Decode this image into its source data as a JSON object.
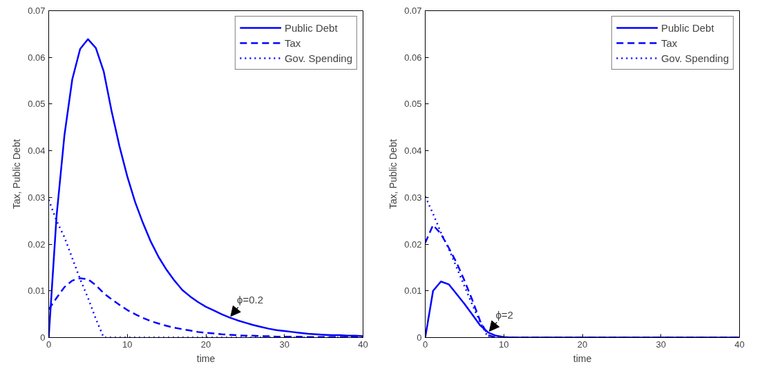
{
  "chart_data": [
    {
      "type": "line",
      "xlabel": "time",
      "ylabel": "Tax, Public Debt",
      "xlim": [
        0,
        40
      ],
      "ylim": [
        0,
        0.07
      ],
      "xticks": [
        0,
        10,
        20,
        30,
        40
      ],
      "yticks": [
        0,
        0.01,
        0.02,
        0.03,
        0.04,
        0.05,
        0.06,
        0.07
      ],
      "grid": false,
      "legend": "top right",
      "x": [
        0,
        1,
        2,
        3,
        4,
        5,
        6,
        7,
        8,
        9,
        10,
        11,
        12,
        13,
        14,
        15,
        16,
        17,
        18,
        19,
        20,
        21,
        22,
        23,
        24,
        25,
        26,
        27,
        28,
        29,
        30,
        31,
        32,
        33,
        34,
        35,
        36,
        37,
        38,
        39,
        40
      ],
      "series": [
        {
          "name": "Public Debt",
          "color": "#0000ff",
          "line_style": "solid",
          "values": [
            0,
            0.026,
            0.0433,
            0.0553,
            0.0618,
            0.0639,
            0.062,
            0.057,
            0.0485,
            0.041,
            0.0345,
            0.029,
            0.0245,
            0.0205,
            0.0172,
            0.0145,
            0.0122,
            0.0102,
            0.0088,
            0.0076,
            0.0066,
            0.0058,
            0.005,
            0.0043,
            0.0037,
            0.0032,
            0.0027,
            0.0023,
            0.0019,
            0.0016,
            0.0014,
            0.0012,
            0.001,
            0.0008,
            0.0007,
            0.0006,
            0.0005,
            0.0005,
            0.0004,
            0.0004,
            0.0003
          ]
        },
        {
          "name": "Tax",
          "color": "#0000ff",
          "line_style": "dashed",
          "values": [
            0.006,
            0.0085,
            0.0108,
            0.0122,
            0.0127,
            0.0125,
            0.0112,
            0.0095,
            0.0082,
            0.007,
            0.0059,
            0.005,
            0.0042,
            0.0035,
            0.003,
            0.0025,
            0.0021,
            0.0018,
            0.0015,
            0.0012,
            0.001,
            0.0009,
            0.0007,
            0.0006,
            0.0005,
            0.0004,
            0.0004,
            0.0003,
            0.0003,
            0.0002,
            0.0002,
            0.0002,
            0.0002,
            0.0001,
            0.0001,
            0.0001,
            0.0001,
            0.0001,
            0.0001,
            0.0001,
            0.0001
          ]
        },
        {
          "name": "Gov. Spending",
          "color": "#0000ff",
          "line_style": "dotted",
          "values": [
            0.0295,
            0.025,
            0.0215,
            0.017,
            0.0125,
            0.0085,
            0.004,
            0,
            0,
            0,
            0,
            0,
            0,
            0,
            0,
            0,
            0,
            0,
            0,
            0,
            0,
            0,
            0,
            0,
            0,
            0,
            0,
            0,
            0,
            0,
            0,
            0,
            0,
            0,
            0,
            0,
            0,
            0,
            0,
            0,
            0
          ]
        }
      ],
      "annotations": [
        {
          "text": "ϕ=0.2",
          "x": 23,
          "y": 0.0043
        }
      ]
    },
    {
      "type": "line",
      "xlabel": "time",
      "ylabel": "Tax, Public Debt",
      "xlim": [
        0,
        40
      ],
      "ylim": [
        0,
        0.07
      ],
      "xticks": [
        0,
        10,
        20,
        30,
        40
      ],
      "yticks": [
        0,
        0.01,
        0.02,
        0.03,
        0.04,
        0.05,
        0.06,
        0.07
      ],
      "grid": false,
      "legend": "top right",
      "x": [
        0,
        1,
        2,
        3,
        4,
        5,
        6,
        7,
        8,
        9,
        10,
        11,
        12,
        13,
        14,
        15,
        16,
        17,
        18,
        19,
        20,
        21,
        22,
        23,
        24,
        25,
        26,
        27,
        28,
        29,
        30,
        31,
        32,
        33,
        34,
        35,
        36,
        37,
        38,
        39,
        40
      ],
      "series": [
        {
          "name": "Public Debt",
          "color": "#0000ff",
          "line_style": "solid",
          "values": [
            0,
            0.01,
            0.012,
            0.0114,
            0.0093,
            0.0072,
            0.0049,
            0.0026,
            0.0011,
            0.0004,
            0.0001,
            0,
            0,
            0,
            0,
            0,
            0,
            0,
            0,
            0,
            0,
            0,
            0,
            0,
            0,
            0,
            0,
            0,
            0,
            0,
            0,
            0,
            0,
            0,
            0,
            0,
            0,
            0,
            0,
            0,
            0
          ]
        },
        {
          "name": "Tax",
          "color": "#0000ff",
          "line_style": "dashed",
          "values": [
            0.0203,
            0.0241,
            0.0222,
            0.0192,
            0.016,
            0.0122,
            0.008,
            0.0035,
            0.0005,
            0,
            0,
            0,
            0,
            0,
            0,
            0,
            0,
            0,
            0,
            0,
            0,
            0,
            0,
            0,
            0,
            0,
            0,
            0,
            0,
            0,
            0,
            0,
            0,
            0,
            0,
            0,
            0,
            0,
            0,
            0,
            0
          ]
        },
        {
          "name": "Gov. Spending",
          "color": "#0000ff",
          "line_style": "dotted",
          "values": [
            0.0302,
            0.0265,
            0.0225,
            0.019,
            0.015,
            0.011,
            0.007,
            0.0033,
            0,
            0,
            0,
            0,
            0,
            0,
            0,
            0,
            0,
            0,
            0,
            0,
            0,
            0,
            0,
            0,
            0,
            0,
            0,
            0,
            0,
            0,
            0,
            0,
            0,
            0,
            0,
            0,
            0,
            0,
            0,
            0,
            0
          ]
        }
      ],
      "annotations": [
        {
          "text": "ϕ=2",
          "x": 8,
          "y": 0.0011
        }
      ]
    }
  ]
}
